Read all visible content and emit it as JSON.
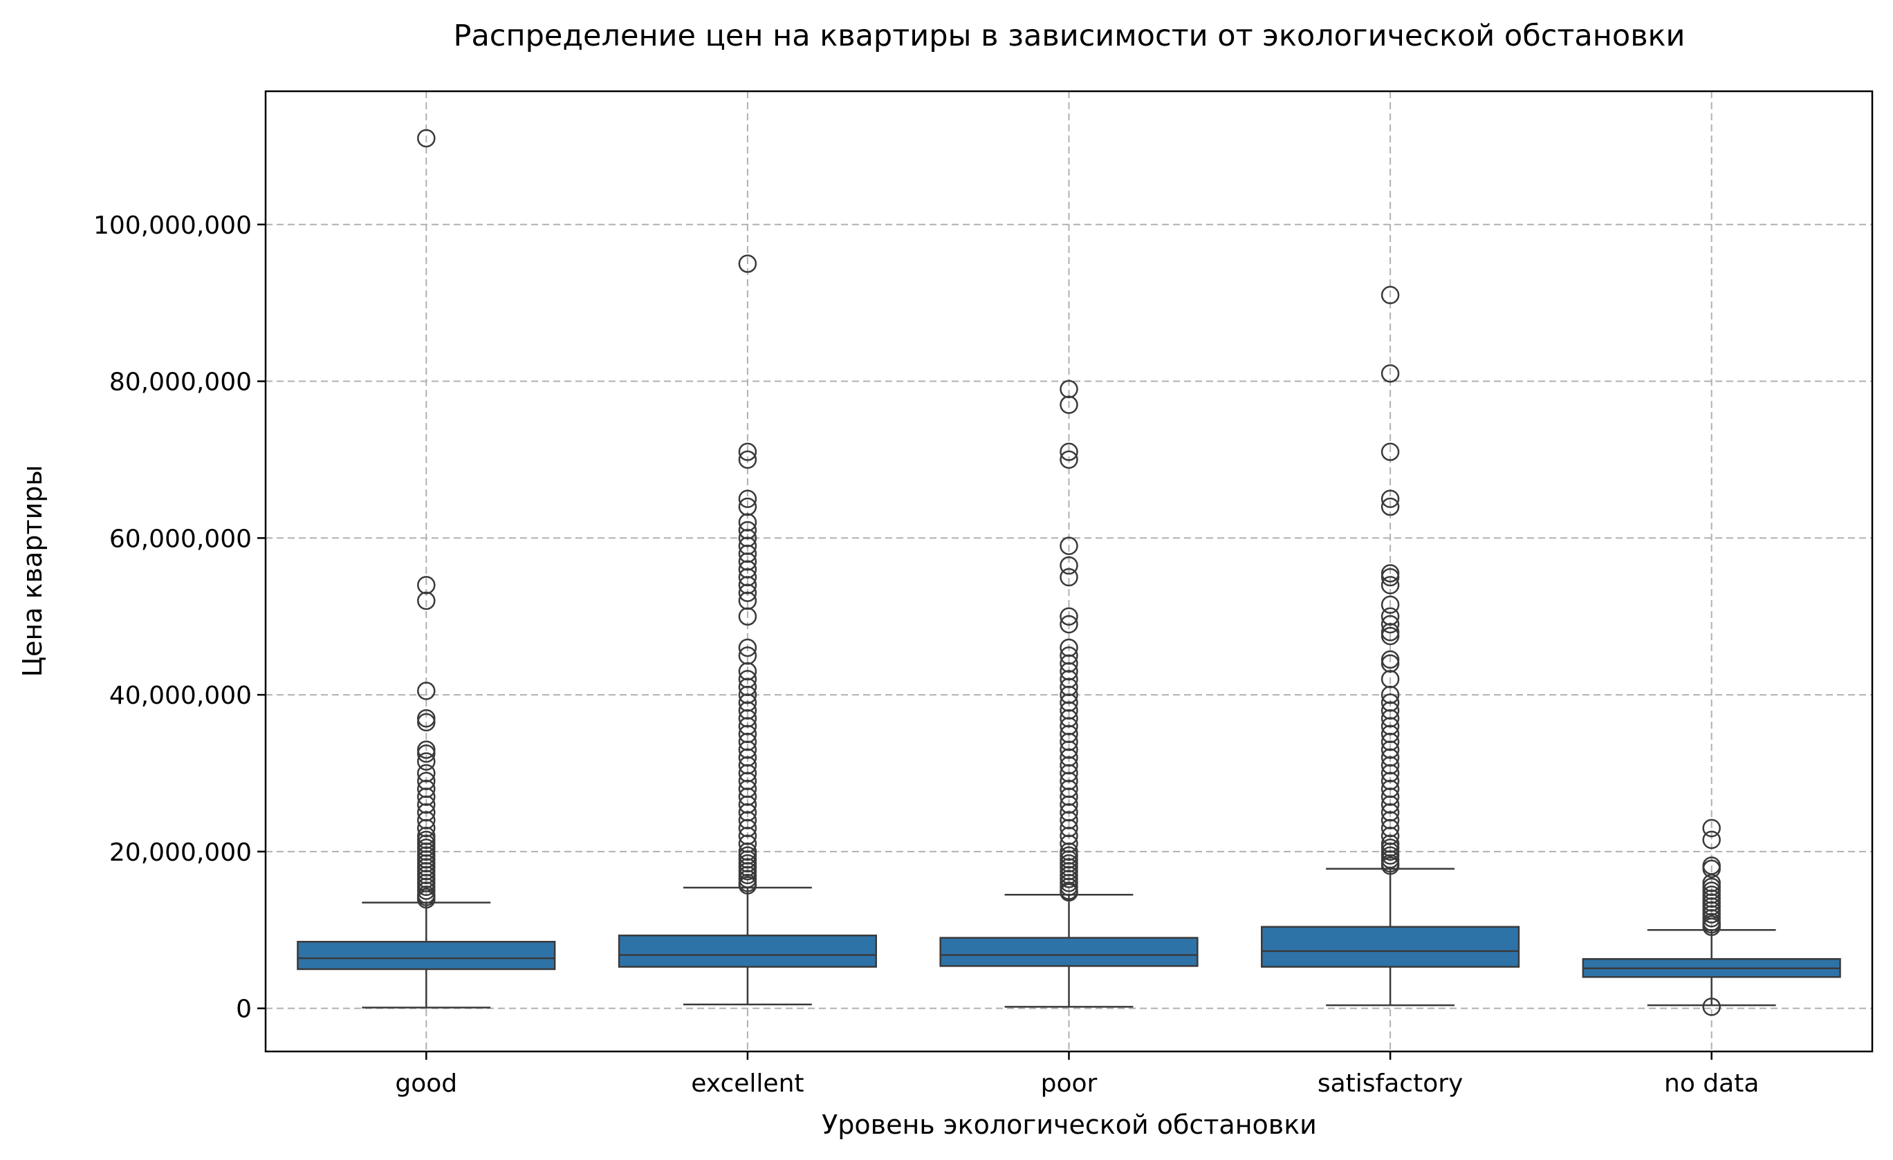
{
  "chart_data": {
    "type": "box",
    "title": "Распределение цен на квартиры в зависимости от экологической обстановки",
    "xlabel": "Уровень экологической обстановки",
    "ylabel": "Цена квартиры",
    "ylim": [
      -5500000,
      117000000
    ],
    "yticks": [
      0,
      20000000,
      40000000,
      60000000,
      80000000,
      100000000
    ],
    "ytick_labels": [
      "0",
      "20,000,000",
      "40,000,000",
      "60,000,000",
      "80,000,000",
      "100,000,000"
    ],
    "grid": true,
    "box_color": "#2e73a8",
    "edge_color": "#3a3a3a",
    "categories": [
      "good",
      "excellent",
      "poor",
      "satisfactory",
      "no data"
    ],
    "boxes": [
      {
        "category": "good",
        "whisker_low": 100000,
        "q1": 5000000,
        "median": 6400000,
        "q3": 8500000,
        "whisker_high": 13500000,
        "outliers": [
          111000000,
          54000000,
          52000000,
          40500000,
          37000000,
          36500000,
          33000000,
          32500000,
          31500000,
          30000000,
          29000000,
          28000000,
          27000000,
          26000000,
          25000000,
          24000000,
          23000000,
          22000000,
          21500000,
          21000000,
          20500000,
          20000000,
          19500000,
          19000000,
          18500000,
          18000000,
          17500000,
          17000000,
          16500000,
          16000000,
          15500000,
          15000000,
          14500000,
          14200000,
          13900000
        ]
      },
      {
        "category": "excellent",
        "whisker_low": 500000,
        "q1": 5300000,
        "median": 6800000,
        "q3": 9300000,
        "whisker_high": 15400000,
        "outliers": [
          95000000,
          71000000,
          70000000,
          65000000,
          64000000,
          62000000,
          61000000,
          60000000,
          59000000,
          58000000,
          57000000,
          56000000,
          55000000,
          54000000,
          53000000,
          52000000,
          50000000,
          46000000,
          45000000,
          43000000,
          42000000,
          41000000,
          40000000,
          39000000,
          38000000,
          37000000,
          36000000,
          35000000,
          34000000,
          33000000,
          32000000,
          31000000,
          30000000,
          29000000,
          28000000,
          27000000,
          26000000,
          25000000,
          24000000,
          23000000,
          22000000,
          21000000,
          20000000,
          19500000,
          19000000,
          18500000,
          18000000,
          17500000,
          17000000,
          16500000,
          16000000,
          15700000
        ]
      },
      {
        "category": "poor",
        "whisker_low": 200000,
        "q1": 5400000,
        "median": 6800000,
        "q3": 9000000,
        "whisker_high": 14500000,
        "outliers": [
          79000000,
          77000000,
          71000000,
          70000000,
          59000000,
          56500000,
          55000000,
          50000000,
          49000000,
          46000000,
          45000000,
          44000000,
          43000000,
          42000000,
          41000000,
          40000000,
          39000000,
          38000000,
          37000000,
          36000000,
          35000000,
          34000000,
          33000000,
          32000000,
          31000000,
          30000000,
          29000000,
          28000000,
          27000000,
          26000000,
          25000000,
          24000000,
          23000000,
          22000000,
          21000000,
          20000000,
          19500000,
          19000000,
          18500000,
          18000000,
          17500000,
          17000000,
          16500000,
          16000000,
          15500000,
          15000000,
          14800000
        ]
      },
      {
        "category": "satisfactory",
        "whisker_low": 400000,
        "q1": 5300000,
        "median": 7300000,
        "q3": 10400000,
        "whisker_high": 17800000,
        "outliers": [
          91000000,
          81000000,
          71000000,
          65000000,
          64000000,
          55500000,
          55000000,
          54000000,
          51500000,
          50000000,
          49000000,
          48000000,
          47500000,
          44500000,
          44000000,
          42000000,
          40000000,
          39000000,
          38000000,
          37000000,
          36000000,
          35000000,
          34000000,
          33000000,
          32000000,
          31000000,
          30000000,
          29000000,
          28000000,
          27000000,
          26000000,
          25000000,
          24000000,
          23000000,
          22000000,
          21000000,
          20500000,
          20000000,
          19500000,
          19000000,
          18500000,
          18200000
        ]
      },
      {
        "category": "no data",
        "whisker_low": 400000,
        "q1": 4000000,
        "median": 5100000,
        "q3": 6300000,
        "whisker_high": 10000000,
        "outliers": [
          23000000,
          21500000,
          18200000,
          17800000,
          16000000,
          15500000,
          15000000,
          14500000,
          14000000,
          13500000,
          13000000,
          12500000,
          12000000,
          11500000,
          11000000,
          10700000,
          10400000,
          200000
        ]
      }
    ]
  }
}
